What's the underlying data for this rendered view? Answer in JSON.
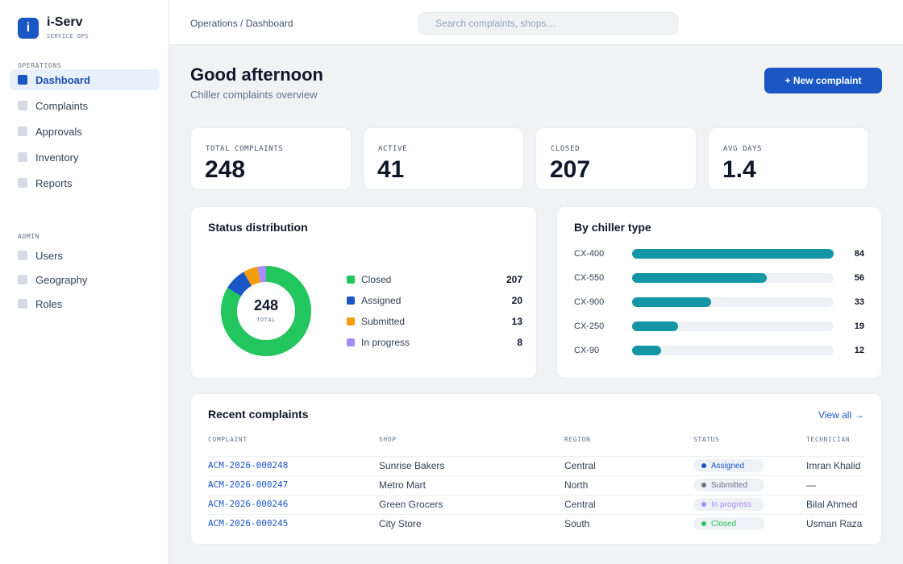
{
  "brand": {
    "logo_letter": "i",
    "name": "i-Serv",
    "subtitle": "SERVICE OPS"
  },
  "sidebar": {
    "sections": [
      {
        "title": "OPERATIONS",
        "items": [
          "Dashboard",
          "Complaints",
          "Approvals",
          "Inventory",
          "Reports"
        ]
      },
      {
        "title": "ADMIN",
        "items": [
          "Users",
          "Geography",
          "Roles"
        ]
      }
    ],
    "active_item": "Dashboard"
  },
  "header": {
    "breadcrumb": "Operations / Dashboard",
    "search_placeholder": "Search complaints, shops…"
  },
  "page": {
    "greeting": "Good afternoon",
    "subtitle": "Chiller complaints overview",
    "new_button": "+ New complaint"
  },
  "stats": [
    {
      "label": "TOTAL COMPLAINTS",
      "value": "248"
    },
    {
      "label": "ACTIVE",
      "value": "41"
    },
    {
      "label": "CLOSED",
      "value": "207"
    },
    {
      "label": "AVG DAYS",
      "value": "1.4"
    }
  ],
  "status_card": {
    "title": "Status distribution",
    "center_value": "248",
    "center_label": "TOTAL",
    "legend": [
      {
        "label": "Closed",
        "value": "207",
        "color": "#22c55e"
      },
      {
        "label": "Assigned",
        "value": "20",
        "color": "#1a56c4"
      },
      {
        "label": "Submitted",
        "value": "13",
        "color": "#f59e0b"
      },
      {
        "label": "In progress",
        "value": "8",
        "color": "#a78bfa"
      }
    ]
  },
  "chiller_card": {
    "title": "By chiller type",
    "bar_color": "#1496a4"
  },
  "chart_data": [
    {
      "type": "pie",
      "categories": [
        "Closed",
        "Assigned",
        "Submitted",
        "In progress"
      ],
      "values": [
        207,
        20,
        13,
        8
      ],
      "total": 248
    },
    {
      "type": "bar",
      "orientation": "horizontal",
      "categories": [
        "CX-400",
        "CX-550",
        "CX-900",
        "CX-250",
        "CX-90"
      ],
      "values": [
        84,
        56,
        33,
        19,
        12
      ],
      "xlim": [
        0,
        84
      ]
    }
  ],
  "recent": {
    "title": "Recent complaints",
    "view_all": "View all →",
    "columns": [
      "COMPLAINT",
      "SHOP",
      "REGION",
      "STATUS",
      "TECHNICIAN"
    ],
    "rows": [
      {
        "id": "ACM-2026-000248",
        "shop": "Sunrise Bakers",
        "region": "Central",
        "status": "Assigned",
        "status_color": "#1a56c4",
        "technician": "Imran Khalid"
      },
      {
        "id": "ACM-2026-000247",
        "shop": "Metro Mart",
        "region": "North",
        "status": "Submitted",
        "status_color": "#64748b",
        "technician": "—"
      },
      {
        "id": "ACM-2026-000246",
        "shop": "Green Grocers",
        "region": "Central",
        "status": "In progress",
        "status_color": "#a78bfa",
        "technician": "Bilal Ahmed"
      },
      {
        "id": "ACM-2026-000245",
        "shop": "City Store",
        "region": "South",
        "status": "Closed",
        "status_color": "#22c55e",
        "technician": "Usman Raza"
      }
    ]
  }
}
